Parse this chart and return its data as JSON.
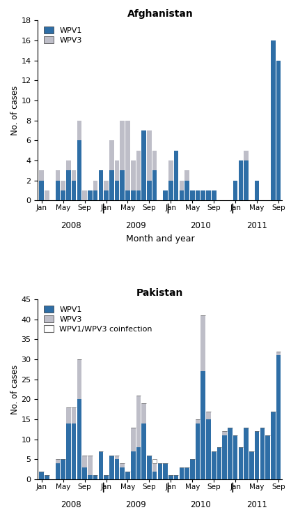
{
  "afghanistan": {
    "title": "Afghanistan",
    "ylabel": "No. of cases",
    "xlabel": "Month and year",
    "ylim": [
      0,
      18
    ],
    "yticks": [
      0,
      2,
      4,
      6,
      8,
      10,
      12,
      14,
      16,
      18
    ],
    "wpv1": [
      2,
      0,
      0,
      2,
      1,
      3,
      2,
      6,
      0,
      1,
      1,
      3,
      1,
      3,
      2,
      3,
      1,
      1,
      1,
      7,
      2,
      3,
      0,
      1,
      2,
      5,
      1,
      2,
      1,
      1,
      1,
      1,
      1,
      0,
      0,
      0,
      2,
      4,
      4,
      0,
      2,
      0,
      0,
      16,
      14
    ],
    "wpv3": [
      1,
      1,
      0,
      1,
      1,
      1,
      1,
      2,
      1,
      0,
      1,
      0,
      1,
      3,
      2,
      5,
      7,
      3,
      4,
      0,
      5,
      2,
      0,
      0,
      2,
      0,
      1,
      1,
      0,
      0,
      0,
      0,
      0,
      0,
      0,
      0,
      0,
      0,
      1,
      0,
      0,
      0,
      0,
      0,
      0
    ],
    "wpv1_color": "#2E6EA6",
    "wpv3_color": "#BEBEC8"
  },
  "pakistan": {
    "title": "Pakistan",
    "ylabel": "No. of cases",
    "xlabel": "Month and year",
    "ylim": [
      0,
      45
    ],
    "yticks": [
      0,
      5,
      10,
      15,
      20,
      25,
      30,
      35,
      40,
      45
    ],
    "wpv1": [
      2,
      1,
      0,
      4,
      5,
      14,
      14,
      20,
      3,
      1,
      1,
      7,
      1,
      6,
      5,
      3,
      2,
      7,
      8,
      14,
      6,
      2,
      4,
      4,
      1,
      1,
      3,
      3,
      5,
      14,
      27,
      15,
      7,
      8,
      11,
      13,
      11,
      8,
      13,
      7,
      12,
      13,
      11,
      17,
      31
    ],
    "wpv3": [
      0,
      0,
      0,
      1,
      0,
      4,
      4,
      10,
      3,
      5,
      0,
      0,
      0,
      0,
      1,
      1,
      0,
      6,
      13,
      5,
      0,
      2,
      0,
      0,
      0,
      0,
      0,
      0,
      0,
      1,
      14,
      2,
      0,
      0,
      1,
      0,
      0,
      0,
      0,
      0,
      0,
      0,
      0,
      0,
      1
    ],
    "coinfection": [
      0,
      0,
      0,
      0,
      0,
      0,
      0,
      0,
      0,
      0,
      0,
      0,
      0,
      0,
      0,
      0,
      0,
      0,
      0,
      0,
      0,
      1,
      0,
      0,
      0,
      0,
      0,
      0,
      0,
      0,
      0,
      0,
      0,
      0,
      0,
      0,
      0,
      0,
      0,
      0,
      0,
      0,
      0,
      0,
      0
    ],
    "wpv1_color": "#2E6EA6",
    "wpv3_color": "#BEBEC8",
    "coinfection_color": "#FFFFFF"
  },
  "n_months": 45,
  "year_month_counts": [
    12,
    12,
    12,
    9
  ],
  "year_labels": [
    "2008",
    "2009",
    "2010",
    "2011"
  ],
  "month_tick_offsets": [
    0,
    4,
    8
  ],
  "month_tick_names": [
    "Jan",
    "May",
    "Sep"
  ]
}
